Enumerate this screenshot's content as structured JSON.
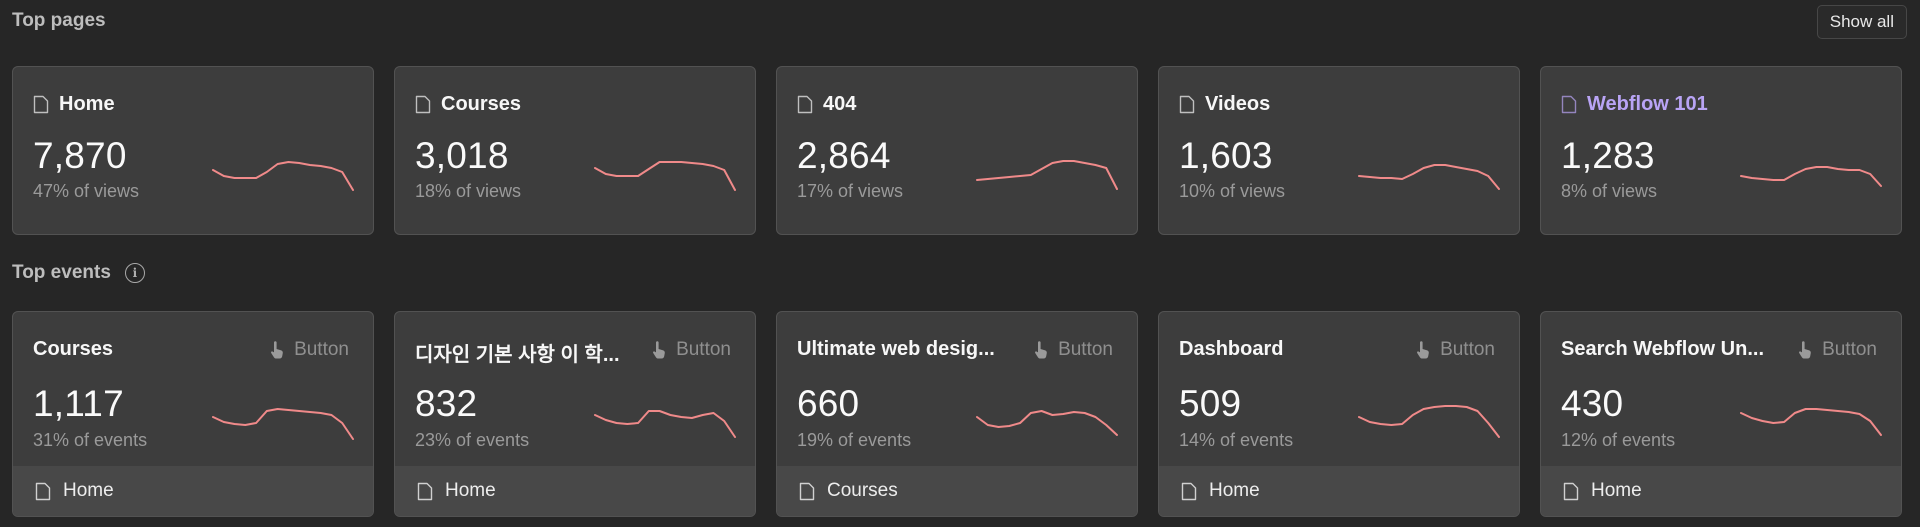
{
  "top_pages": {
    "title": "Top pages",
    "show_all_label": "Show all",
    "cards": [
      {
        "name": "Home",
        "value": "7,870",
        "share": "47% of views",
        "icon": "page-icon",
        "accent": false,
        "spark": [
          14,
          20,
          22,
          22,
          22,
          16,
          8,
          6,
          7,
          9,
          10,
          12,
          16,
          34
        ]
      },
      {
        "name": "Courses",
        "value": "3,018",
        "share": "18% of views",
        "icon": "page-icon",
        "accent": false,
        "spark": [
          12,
          18,
          20,
          20,
          20,
          13,
          6,
          6,
          6,
          7,
          8,
          10,
          14,
          34
        ]
      },
      {
        "name": "404",
        "value": "2,864",
        "share": "17% of views",
        "icon": "page-icon",
        "accent": false,
        "spark": [
          24,
          23,
          22,
          21,
          20,
          19,
          13,
          7,
          5,
          5,
          7,
          9,
          12,
          33
        ]
      },
      {
        "name": "Videos",
        "value": "1,603",
        "share": "10% of views",
        "icon": "page-icon",
        "accent": false,
        "spark": [
          20,
          21,
          22,
          22,
          23,
          18,
          12,
          9,
          9,
          11,
          13,
          15,
          20,
          33
        ]
      },
      {
        "name": "Webflow 101",
        "value": "1,283",
        "share": "8% of views",
        "icon": "page-icon",
        "accent": true,
        "spark": [
          20,
          22,
          23,
          24,
          24,
          18,
          13,
          11,
          11,
          13,
          14,
          14,
          18,
          30
        ]
      }
    ]
  },
  "top_events": {
    "title": "Top events",
    "info_icon": "info-icon",
    "cards": [
      {
        "name": "Courses",
        "type": "Button",
        "type_icon": "pointer-hand-icon",
        "value": "1,117",
        "share": "31% of events",
        "page": "Home",
        "spark": [
          14,
          19,
          21,
          22,
          20,
          8,
          6,
          7,
          8,
          9,
          10,
          12,
          20,
          36
        ]
      },
      {
        "name": "디자인 기본 사항 이 학...",
        "type": "Button",
        "type_icon": "pointer-hand-icon",
        "value": "832",
        "share": "23% of events",
        "page": "Home",
        "spark": [
          12,
          17,
          20,
          21,
          20,
          8,
          8,
          12,
          14,
          15,
          12,
          10,
          18,
          34
        ]
      },
      {
        "name": "Ultimate web desig...",
        "type": "Button",
        "type_icon": "pointer-hand-icon",
        "value": "660",
        "share": "19% of events",
        "page": "Courses",
        "spark": [
          14,
          22,
          24,
          23,
          20,
          10,
          8,
          12,
          11,
          9,
          10,
          14,
          22,
          32
        ]
      },
      {
        "name": "Dashboard",
        "type": "Button",
        "type_icon": "pointer-hand-icon",
        "value": "509",
        "share": "14% of events",
        "page": "Home",
        "spark": [
          14,
          19,
          21,
          22,
          21,
          12,
          6,
          4,
          3,
          3,
          4,
          8,
          20,
          34
        ]
      },
      {
        "name": "Search Webflow Un...",
        "type": "Button",
        "type_icon": "pointer-hand-icon",
        "value": "430",
        "share": "12% of events",
        "page": "Home",
        "spark": [
          10,
          15,
          18,
          20,
          19,
          10,
          6,
          6,
          7,
          8,
          9,
          11,
          18,
          32
        ]
      }
    ]
  },
  "colors": {
    "background": "#262626",
    "card": "#3d3d3d",
    "card_footer": "#484848",
    "sparkline": "#f08a8a",
    "accent": "#b9a4f5"
  }
}
